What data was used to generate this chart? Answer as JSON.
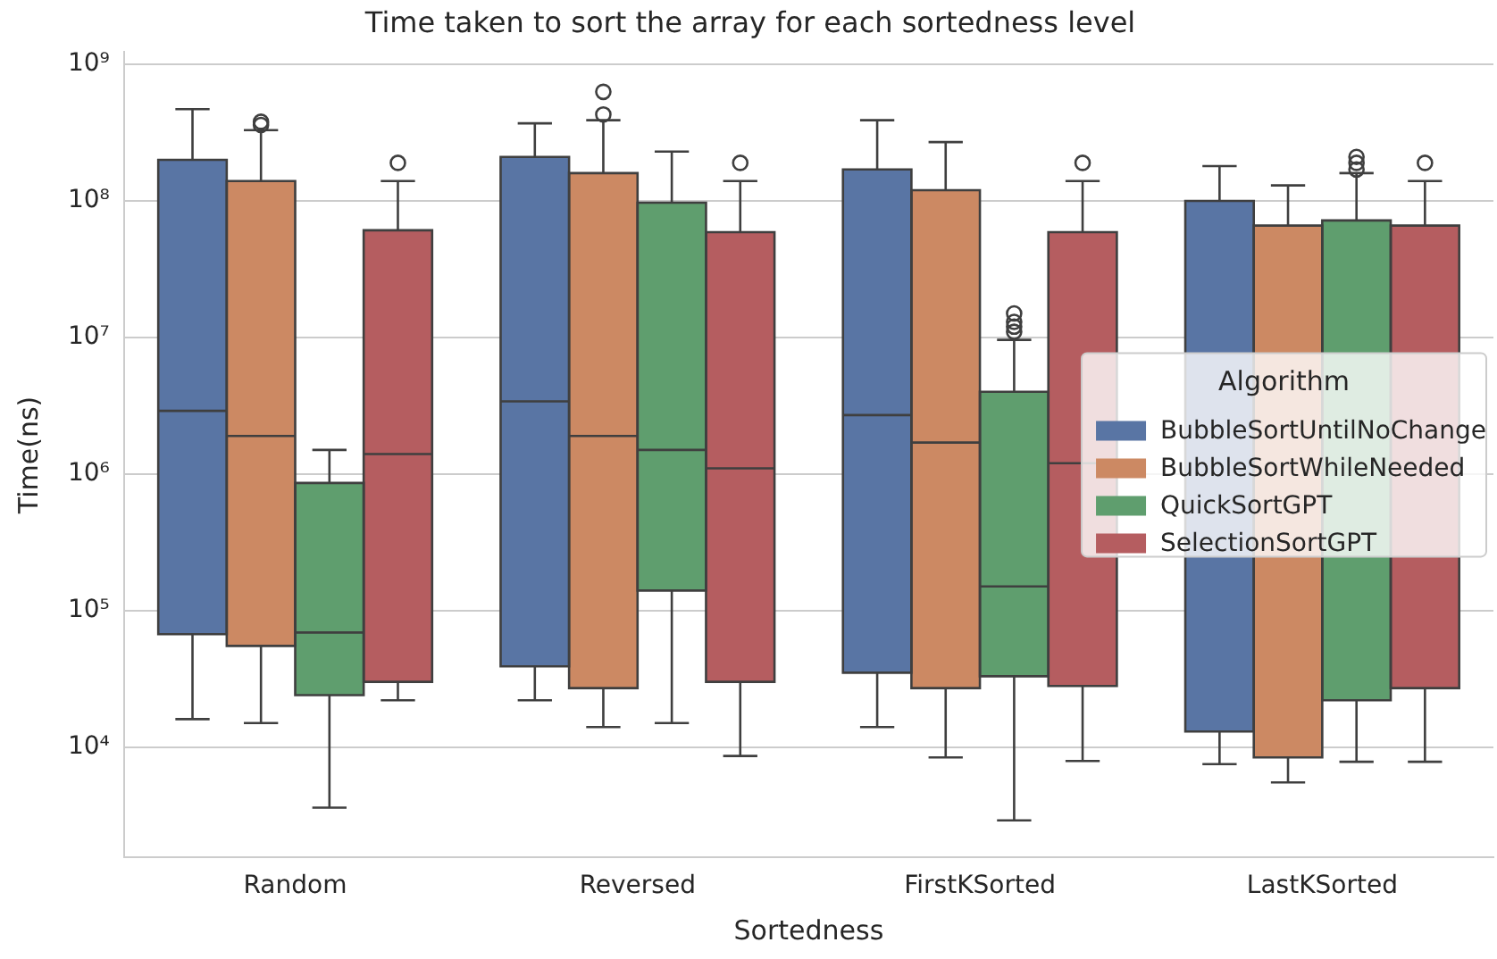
{
  "chart_data": {
    "type": "box",
    "title": "Time taken to sort the array for each sortedness level",
    "xlabel": "Sortedness",
    "ylabel": "Time(ns)",
    "legend_title": "Algorithm",
    "categories": [
      "Random",
      "Reversed",
      "FirstKSorted",
      "LastKSorted"
    ],
    "log": true,
    "ylim": [
      1550,
      1230000000
    ],
    "yticks": [
      {
        "value": 10000,
        "label": "10⁴"
      },
      {
        "value": 100000,
        "label": "10⁵"
      },
      {
        "value": 1000000,
        "label": "10⁶"
      },
      {
        "value": 10000000,
        "label": "10⁷"
      },
      {
        "value": 100000000,
        "label": "10⁸"
      },
      {
        "value": 1000000000,
        "label": "10⁹"
      }
    ],
    "grid": "y",
    "legend": "right",
    "series": [
      {
        "name": "BubbleSortUntilNoChange",
        "color": "#5975a4",
        "boxes": [
          {
            "low": 16000,
            "q1": 67000,
            "median": 2900000,
            "q3": 200000000,
            "high": 470000000
          },
          {
            "low": 22000,
            "q1": 39000,
            "median": 3400000,
            "q3": 210000000,
            "high": 370000000
          },
          {
            "low": 14000,
            "q1": 35000,
            "median": 2700000,
            "q3": 170000000,
            "high": 390000000
          },
          {
            "low": 7500,
            "q1": 13000,
            "median": null,
            "q3": 100000000,
            "high": 180000000
          }
        ]
      },
      {
        "name": "BubbleSortWhileNeeded",
        "color": "#cc8963",
        "boxes": [
          {
            "low": 15000,
            "q1": 55000,
            "median": 1900000,
            "q3": 140000000,
            "high": 330000000,
            "outliers": [
              360000000,
              380000000
            ]
          },
          {
            "low": 14000,
            "q1": 27000,
            "median": 1900000,
            "q3": 160000000,
            "high": 390000000,
            "outliers": [
              430000000,
              630000000
            ]
          },
          {
            "low": 8400,
            "q1": 27000,
            "median": 1700000,
            "q3": 120000000,
            "high": 270000000
          },
          {
            "low": 5500,
            "q1": 8400,
            "median": null,
            "q3": 66000000,
            "high": 130000000
          }
        ]
      },
      {
        "name": "QuickSortGPT",
        "color": "#5f9e6e",
        "boxes": [
          {
            "low": 3600,
            "q1": 24000,
            "median": 69000,
            "q3": 860000,
            "high": 1500000
          },
          {
            "low": 15000,
            "q1": 140000,
            "median": 1500000,
            "q3": 97000000,
            "high": 230000000
          },
          {
            "low": 2900,
            "q1": 33000,
            "median": 150000,
            "q3": 4000000,
            "high": 9600000,
            "outliers": [
              11000000,
              12000000,
              13000000,
              15000000
            ]
          },
          {
            "low": 7800,
            "q1": 22000,
            "median": null,
            "q3": 72000000,
            "high": 160000000,
            "outliers": [
              170000000,
              190000000,
              210000000
            ]
          }
        ]
      },
      {
        "name": "SelectionSortGPT",
        "color": "#b55d60",
        "boxes": [
          {
            "low": 22000,
            "q1": 30000,
            "median": 1400000,
            "q3": 61000000,
            "high": 140000000,
            "outliers": [
              190000000
            ]
          },
          {
            "low": 8600,
            "q1": 30000,
            "median": 1100000,
            "q3": 59000000,
            "high": 140000000,
            "outliers": [
              190000000
            ]
          },
          {
            "low": 7900,
            "q1": 28000,
            "median": 1200000,
            "q3": 59000000,
            "high": 140000000,
            "outliers": [
              190000000
            ]
          },
          {
            "low": 7800,
            "q1": 27000,
            "median": null,
            "q3": 66000000,
            "high": 140000000,
            "outliers": [
              190000000
            ]
          }
        ]
      }
    ]
  }
}
